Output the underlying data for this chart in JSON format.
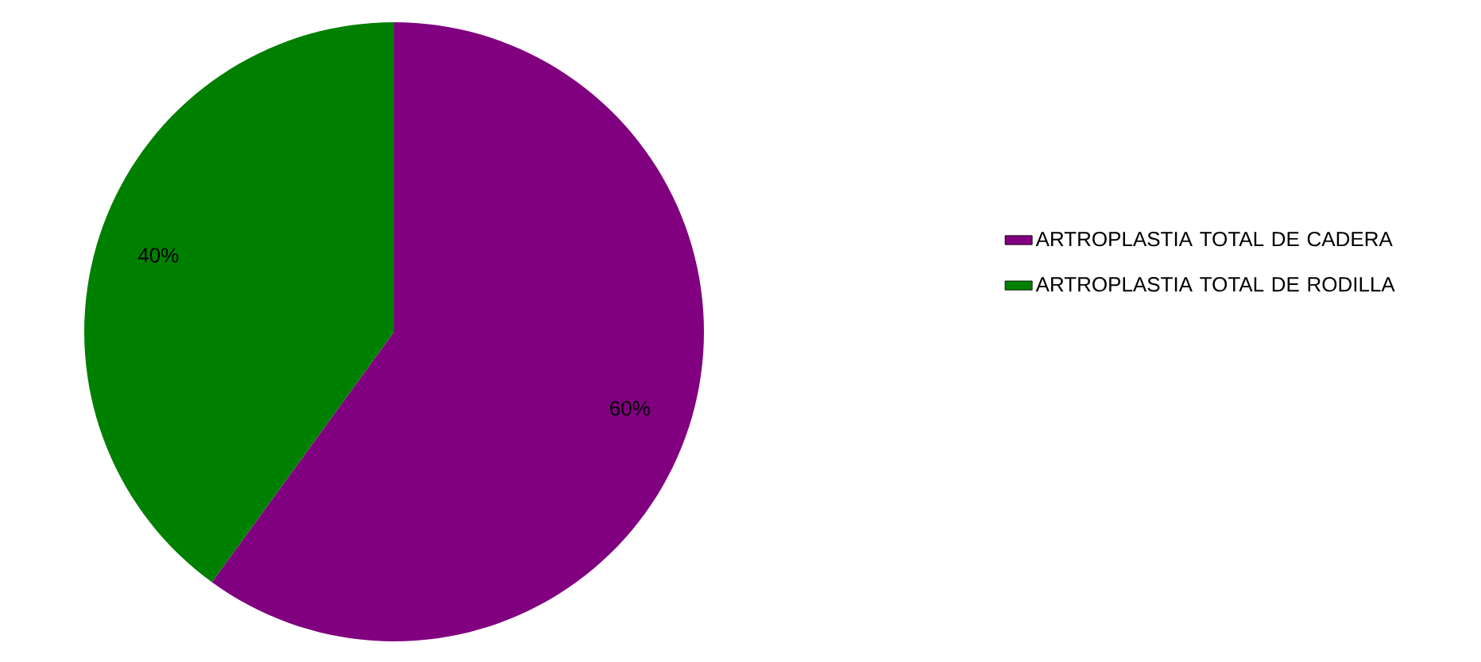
{
  "chart_data": {
    "type": "pie",
    "categories": [
      "ARTROPLASTIA TOTAL DE CADERA",
      "ARTROPLASTIA TOTAL DE RODILLA"
    ],
    "values": [
      60,
      40
    ],
    "colors": [
      "#800080",
      "#008000"
    ],
    "value_labels": [
      "60%",
      "40%"
    ],
    "legend": "right"
  }
}
